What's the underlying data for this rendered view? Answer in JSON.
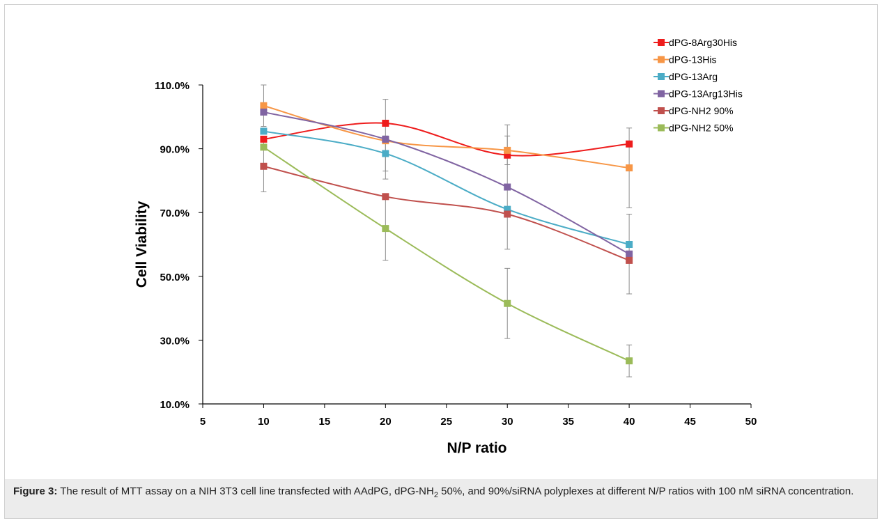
{
  "chart_data": {
    "type": "line",
    "ylabel": "Cell Viability",
    "xlabel": "N/P ratio",
    "xlim": [
      5,
      50
    ],
    "ylim": [
      10,
      110
    ],
    "x_ticks": [
      "5",
      "10",
      "15",
      "20",
      "25",
      "30",
      "35",
      "40",
      "45",
      "50"
    ],
    "y_ticks": [
      "10.0%",
      "30.0%",
      "50.0%",
      "70.0%",
      "90.0%",
      "110.0%"
    ],
    "x": [
      10,
      20,
      30,
      40
    ],
    "grid": false,
    "legend_position": "top-right",
    "series": [
      {
        "name": "dPG-8Arg30His",
        "color": "#ee1c1c",
        "values": [
          93,
          98,
          88,
          91.5
        ],
        "errors": [
          0,
          0,
          0,
          0
        ]
      },
      {
        "name": "dPG-13His",
        "color": "#f79646",
        "values": [
          103.5,
          92.5,
          89.5,
          84
        ],
        "errors": [
          6.5,
          0,
          4.5,
          12.5
        ]
      },
      {
        "name": "dPG-13Arg",
        "color": "#4bacc6",
        "values": [
          95.5,
          88.5,
          71,
          60
        ],
        "errors": [
          0,
          5.5,
          0,
          0
        ]
      },
      {
        "name": "dPG-13Arg13His",
        "color": "#8064a2",
        "values": [
          101.5,
          93,
          78,
          57
        ],
        "errors": [
          0,
          12.5,
          19.5,
          12.5
        ]
      },
      {
        "name": "dPG-NH2 90%",
        "color": "#c0504d",
        "values": [
          84.5,
          75,
          69.5,
          55
        ],
        "errors": [
          8,
          0,
          0,
          0
        ]
      },
      {
        "name": "dPG-NH2 50%",
        "color": "#9bbb59",
        "values": [
          90.5,
          65,
          41.5,
          23.5
        ],
        "errors": [
          0,
          10,
          11,
          5
        ]
      }
    ]
  },
  "caption": {
    "label": "Figure 3:",
    "text_before_sub": " The result of MTT assay on a NIH 3T3 cell line transfected with AAdPG, dPG-NH",
    "sub": "2",
    "text_after_sub": " 50%, and 90%/siRNA polyplexes at different N/P ratios with 100 nM siRNA concentration."
  }
}
